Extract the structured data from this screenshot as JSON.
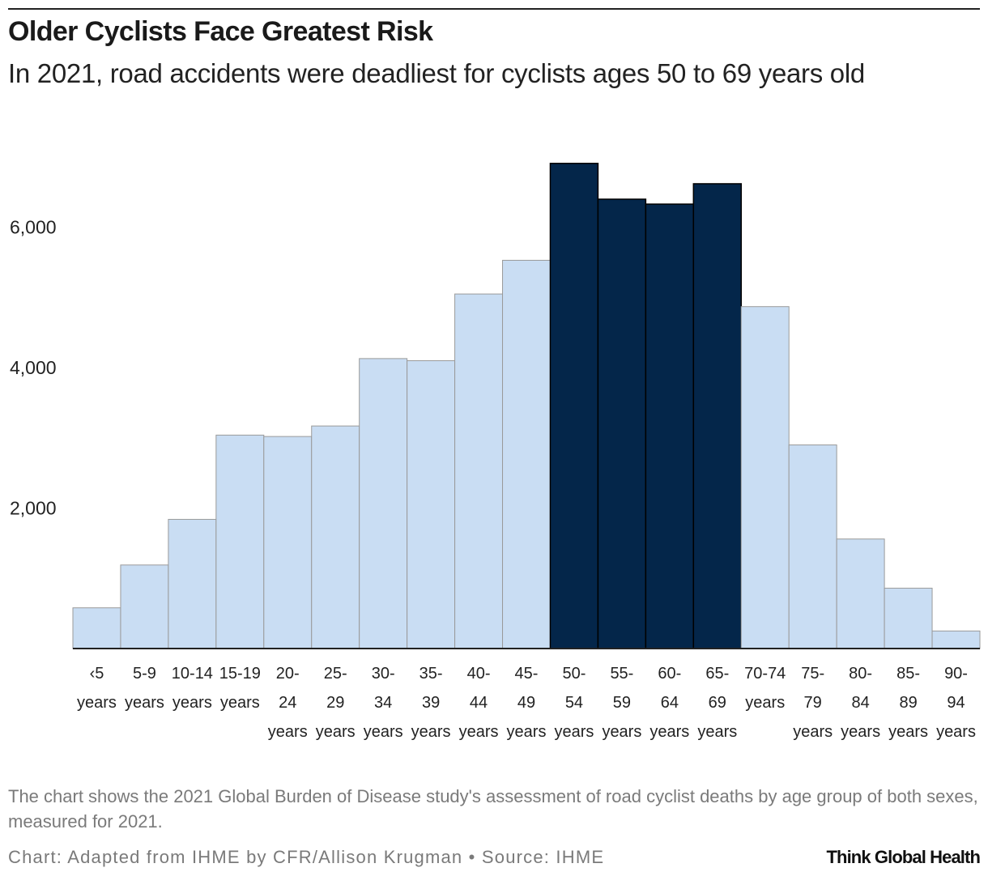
{
  "header": {
    "title": "Older Cyclists Face Greatest Risk",
    "subtitle": "In 2021, road accidents were deadliest for cyclists ages 50 to 69 years old"
  },
  "footer": {
    "note": "The chart shows the 2021 Global Burden of Disease study's assessment of road cyclist deaths by age group of both sexes, measured for 2021.",
    "credit": "Chart: Adapted from IHME by CFR/Allison Krugman • Source: IHME",
    "brand": "Think Global Health"
  },
  "colors": {
    "bar": "#c9ddf3",
    "highlight": "#04264a",
    "bar_stroke": "#9a9a9a",
    "axis": "#222222"
  },
  "chart_data": {
    "type": "bar",
    "categories": [
      "‹5 years",
      "5-9 years",
      "10-14 years",
      "15-19 years",
      "20-24 years",
      "25-29 years",
      "30-34 years",
      "35-39 years",
      "40-44 years",
      "45-49 years",
      "50-54 years",
      "55-59 years",
      "60-64 years",
      "65-69 years",
      "70-74 years",
      "75-79 years",
      "80-84 years",
      "85-89 years",
      "90-94 years"
    ],
    "category_labels": [
      [
        "‹5",
        "years"
      ],
      [
        "5-9",
        "years"
      ],
      [
        "10-14",
        "years"
      ],
      [
        "15-19",
        "years"
      ],
      [
        "20-",
        "24",
        "years"
      ],
      [
        "25-",
        "29",
        "years"
      ],
      [
        "30-",
        "34",
        "years"
      ],
      [
        "35-",
        "39",
        "years"
      ],
      [
        "40-",
        "44",
        "years"
      ],
      [
        "45-",
        "49",
        "years"
      ],
      [
        "50-",
        "54",
        "years"
      ],
      [
        "55-",
        "59",
        "years"
      ],
      [
        "60-",
        "64",
        "years"
      ],
      [
        "65-",
        "69",
        "years"
      ],
      [
        "70-74",
        "years"
      ],
      [
        "75-",
        "79",
        "years"
      ],
      [
        "80-",
        "84",
        "years"
      ],
      [
        "85-",
        "89",
        "years"
      ],
      [
        "90-",
        "94",
        "years"
      ]
    ],
    "values": [
      580,
      1190,
      1840,
      3040,
      3020,
      3170,
      4130,
      4100,
      5050,
      5530,
      6910,
      6400,
      6330,
      6620,
      4870,
      2900,
      1560,
      860,
      250
    ],
    "highlighted": [
      false,
      false,
      false,
      false,
      false,
      false,
      false,
      false,
      false,
      false,
      true,
      true,
      true,
      true,
      false,
      false,
      false,
      false,
      false
    ],
    "yticks": [
      2000,
      4000,
      6000
    ],
    "ytick_labels": [
      "2,000",
      "4,000",
      "6,000"
    ],
    "ylim": [
      0,
      7000
    ],
    "xlabel": "",
    "ylabel": "",
    "grid": false,
    "legend": "none"
  }
}
